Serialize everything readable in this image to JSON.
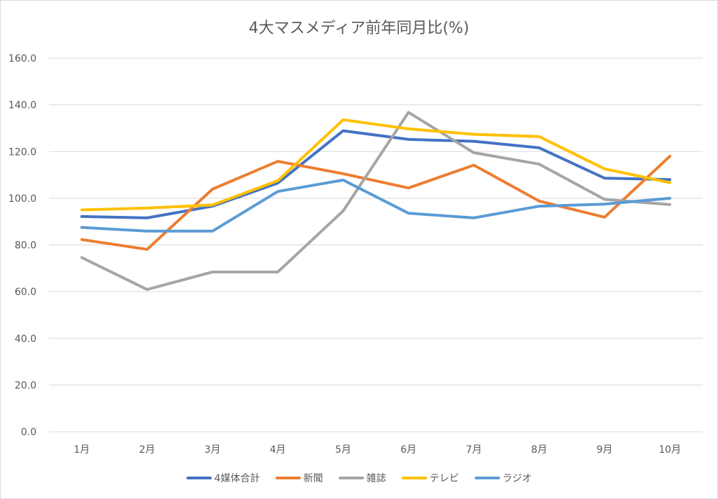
{
  "chart_data": {
    "type": "line",
    "title": "4大マスメディア前年同月比(%)",
    "categories": [
      "1月",
      "2月",
      "3月",
      "4月",
      "5月",
      "6月",
      "7月",
      "8月",
      "9月",
      "10月"
    ],
    "y_ticks": [
      "0.0",
      "20.0",
      "40.0",
      "60.0",
      "80.0",
      "100.0",
      "120.0",
      "140.0",
      "160.0"
    ],
    "ylim": [
      0,
      160
    ],
    "grid": true,
    "legend_position": "bottom",
    "series": [
      {
        "name": "4媒体合計",
        "color": "#4472c4",
        "values": [
          92.2,
          91.6,
          96.6,
          106.5,
          128.9,
          125.2,
          124.4,
          121.6,
          108.6,
          108.0
        ]
      },
      {
        "name": "新聞",
        "color": "#ed7d31",
        "values": [
          82.3,
          78.1,
          103.9,
          115.8,
          110.5,
          104.4,
          114.2,
          98.8,
          91.9,
          118.0
        ]
      },
      {
        "name": "雑誌",
        "color": "#a5a5a5",
        "values": [
          74.6,
          60.9,
          68.4,
          68.4,
          94.6,
          136.8,
          119.5,
          114.6,
          99.5,
          97.3
        ]
      },
      {
        "name": "テレビ",
        "color": "#ffc000",
        "values": [
          95.0,
          95.8,
          97.1,
          107.5,
          133.6,
          129.7,
          127.4,
          126.4,
          112.6,
          106.7
        ]
      },
      {
        "name": "ラジオ",
        "color": "#5b9bd5",
        "values": [
          87.5,
          85.9,
          85.9,
          102.9,
          107.8,
          93.6,
          91.6,
          96.6,
          97.5,
          100.0
        ]
      }
    ]
  }
}
